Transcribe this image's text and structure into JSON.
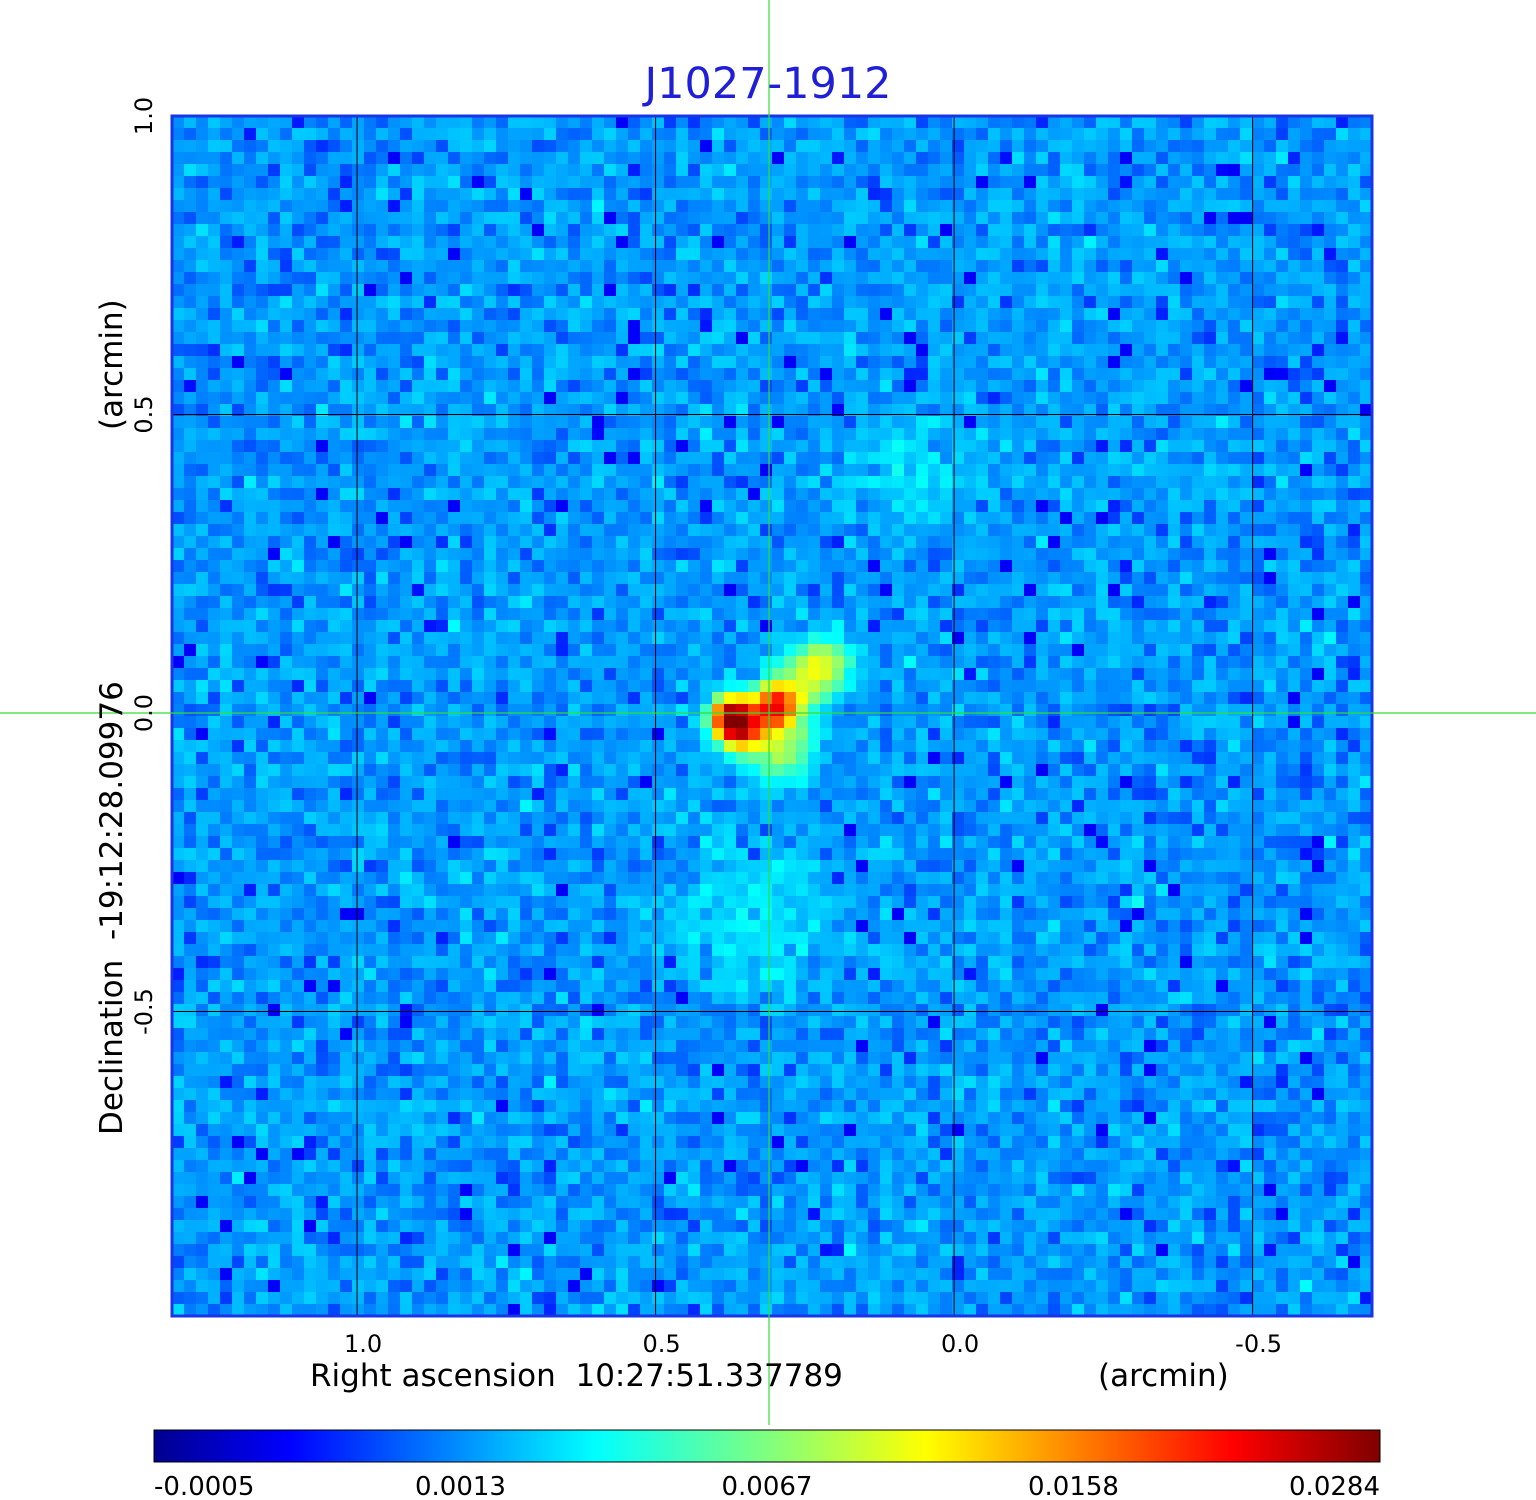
{
  "chart_data": {
    "type": "heatmap",
    "title": "J1027-1912",
    "xlabel": "Right ascension  10:27:51.337789",
    "xunit": "(arcmin)",
    "ylabel": "Declination  -19:12:28.09976",
    "yunit": "(arcmin)",
    "xlim": [
      1.31,
      -0.7
    ],
    "ylim": [
      -1.01,
      1.0
    ],
    "x_ticks": [
      {
        "value": 1.0,
        "label": "1.0"
      },
      {
        "value": 0.5,
        "label": "0.5"
      },
      {
        "value": 0.0,
        "label": "0.0"
      },
      {
        "value": -0.5,
        "label": "-0.5"
      }
    ],
    "y_ticks": [
      {
        "value": 1.0,
        "label": "1.0"
      },
      {
        "value": 0.5,
        "label": "0.5"
      },
      {
        "value": 0.0,
        "label": "0.0"
      },
      {
        "value": -0.5,
        "label": "-0.5"
      }
    ],
    "grid": true,
    "crosshair": {
      "x": 0.31,
      "y": 0.0
    },
    "colormap": "jet",
    "colorbar": {
      "placement": "bottom",
      "ticks": [
        "-0.0005",
        "0.0013",
        "0.0067",
        "0.0158",
        "0.0284"
      ],
      "min": -0.0005,
      "max": 0.0284
    },
    "background_level": 0.0004,
    "noise_level": 0.0007,
    "sources": [
      {
        "x": 0.37,
        "y": -0.01,
        "peak": 0.028,
        "sigma": 0.022
      },
      {
        "x": 0.35,
        "y": -0.03,
        "peak": 0.012,
        "sigma": 0.025
      },
      {
        "x": 0.3,
        "y": 0.01,
        "peak": 0.02,
        "sigma": 0.024
      },
      {
        "x": 0.29,
        "y": -0.06,
        "peak": 0.0055,
        "sigma": 0.035
      },
      {
        "x": 0.22,
        "y": 0.08,
        "peak": 0.0075,
        "sigma": 0.03
      },
      {
        "x": 0.26,
        "y": 0.04,
        "peak": 0.005,
        "sigma": 0.03
      },
      {
        "x": 0.08,
        "y": 0.4,
        "peak": 0.0012,
        "sigma": 0.06
      },
      {
        "x": 0.33,
        "y": -0.35,
        "peak": 0.0012,
        "sigma": 0.08
      }
    ],
    "colors": {
      "title": "#1f1fd8",
      "grid": "#000000",
      "crosshair": "#33dd33",
      "frame": "#1a35e6"
    }
  }
}
